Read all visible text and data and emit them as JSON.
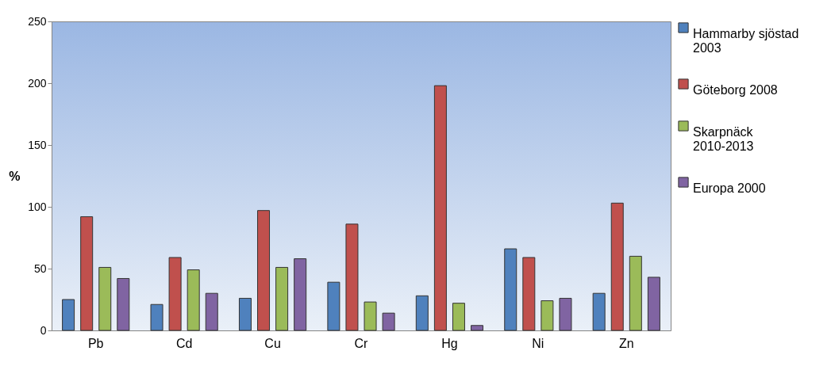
{
  "chart_data": {
    "type": "bar",
    "ylabel": "%",
    "categories": [
      "Pb",
      "Cd",
      "Cu",
      "Cr",
      "Hg",
      "Ni",
      "Zn"
    ],
    "series": [
      {
        "name": "Hammarby sjöstad 2003",
        "color": "#4f81bd",
        "values": [
          25,
          21,
          26,
          39,
          28,
          66,
          30
        ]
      },
      {
        "name": "Göteborg 2008",
        "color": "#c0504d",
        "values": [
          92,
          59,
          97,
          86,
          198,
          59,
          103
        ]
      },
      {
        "name": "Skarpnäck 2010-2013",
        "color": "#9bbb59",
        "values": [
          51,
          49,
          51,
          23,
          22,
          24,
          60
        ]
      },
      {
        "name": "Europa 2000",
        "color": "#8064a2",
        "values": [
          42,
          30,
          58,
          14,
          4,
          26,
          43
        ]
      }
    ],
    "ylim": [
      0,
      250
    ],
    "yticks": [
      0,
      50,
      100,
      150,
      200,
      250
    ],
    "legend": "right"
  }
}
